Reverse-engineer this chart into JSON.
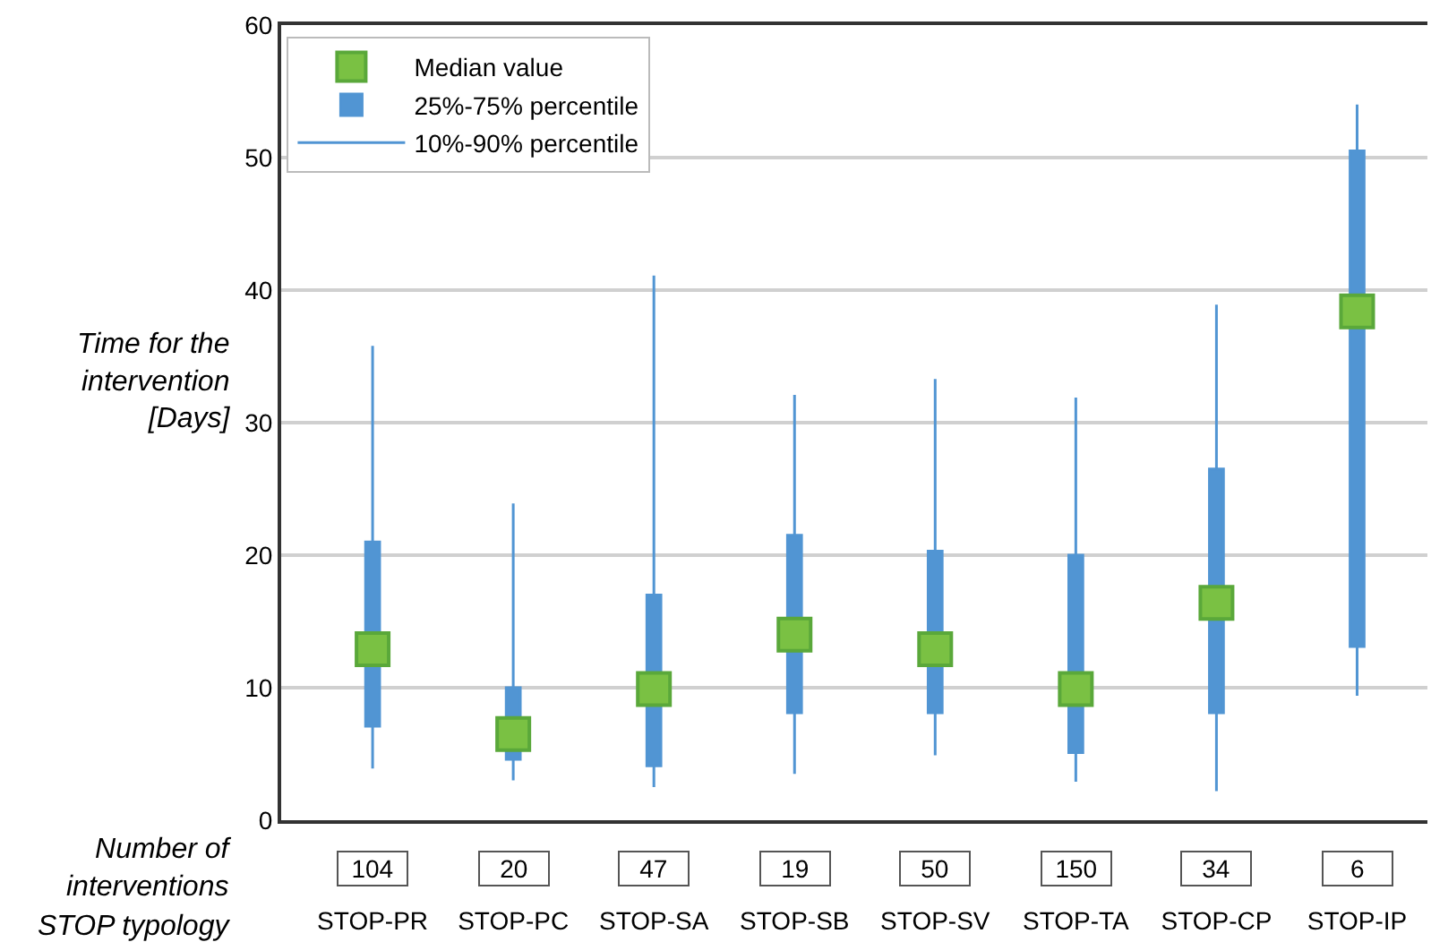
{
  "chart_data": {
    "type": "box",
    "ylabel": "Time for the intervention [Days]",
    "xlabel": "STOP typology",
    "categories": [
      "STOP-PR",
      "STOP-PC",
      "STOP-SA",
      "STOP-SB",
      "STOP-SV",
      "STOP-TA",
      "STOP-CP",
      "STOP-IP"
    ],
    "series": [
      {
        "name": "Median value",
        "type": "scatter",
        "color": "#7ac143",
        "values": [
          12.9,
          6.5,
          9.9,
          14.0,
          12.9,
          9.9,
          16.4,
          38.4
        ]
      },
      {
        "name": "25%-75% percentile",
        "color": "#5195d3",
        "boxes": [
          {
            "low": 3.9,
            "q1": 7.1,
            "median": 12.9,
            "q3": 21.0,
            "high": 35.8
          },
          {
            "low": 3.0,
            "q1": 4.6,
            "median": 6.5,
            "q3": 10.0,
            "high": 23.9
          },
          {
            "low": 2.5,
            "q1": 4.1,
            "median": 9.9,
            "q3": 17.0,
            "high": 41.1
          },
          {
            "low": 3.5,
            "q1": 8.1,
            "median": 14.0,
            "q3": 21.5,
            "high": 32.1
          },
          {
            "low": 4.9,
            "q1": 8.1,
            "median": 12.9,
            "q3": 20.3,
            "high": 33.3
          },
          {
            "low": 2.9,
            "q1": 5.1,
            "median": 9.9,
            "q3": 20.0,
            "high": 31.9
          },
          {
            "low": 2.2,
            "q1": 8.1,
            "median": 16.4,
            "q3": 26.5,
            "high": 38.9
          },
          {
            "low": 9.4,
            "q1": 13.1,
            "median": 38.4,
            "q3": 50.5,
            "high": 54.0
          }
        ]
      }
    ],
    "annotations": [
      "10%-90% percentile",
      "Number of interventions",
      "104",
      "20",
      "47",
      "19",
      "50",
      "150",
      "34",
      "6"
    ],
    "ylim": [
      0,
      60
    ],
    "yticks": [
      0,
      10,
      20,
      30,
      40,
      50,
      60
    ],
    "grid": "y",
    "legend": "top left",
    "marker": "square"
  }
}
